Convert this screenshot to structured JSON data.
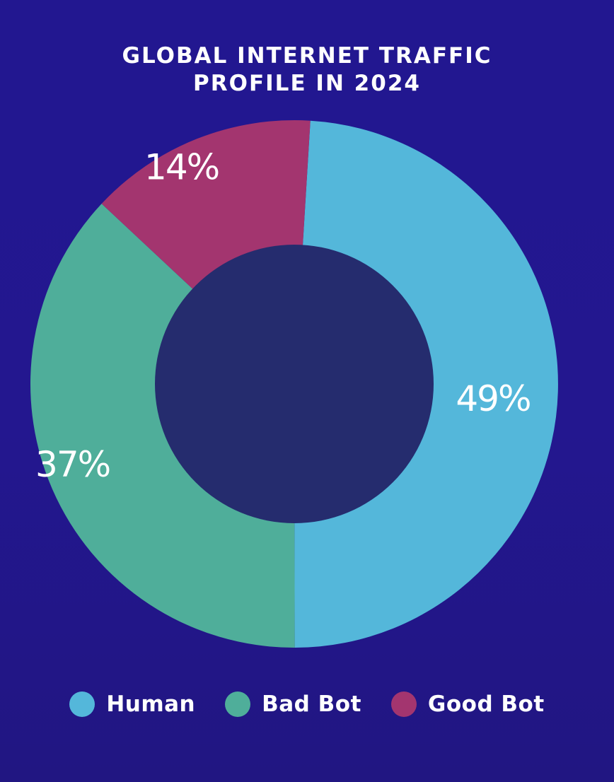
{
  "chart_data": {
    "type": "pie",
    "variant": "donut",
    "title": "GLOBAL INTERNET TRAFFIC PROFILE IN 2024",
    "title_lines": [
      "GLOBAL INTERNET TRAFFIC",
      "PROFILE IN 2024"
    ],
    "categories": [
      "Human",
      "Bad Bot",
      "Good Bot"
    ],
    "values": [
      49,
      37,
      14
    ],
    "labels": [
      "49%",
      "37%",
      "14%"
    ],
    "colors": [
      "#54b7da",
      "#4fae9a",
      "#a3356f"
    ],
    "legend_position": "bottom"
  },
  "legend": {
    "items": [
      {
        "label": "Human",
        "color": "#54b7da"
      },
      {
        "label": "Bad Bot",
        "color": "#4fae9a"
      },
      {
        "label": "Good Bot",
        "color": "#a3356f"
      }
    ]
  },
  "theme": {
    "background": "#221790",
    "hole": "#252c6e",
    "text": "#ffffff"
  }
}
